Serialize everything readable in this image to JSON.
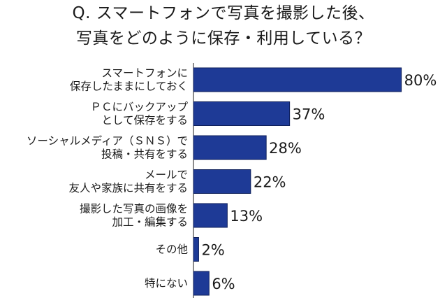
{
  "title_lines": [
    "Q. スマートフォンで写真を撮影した後、",
    "写真をどのように保存・利用している？"
  ],
  "chart_data": {
    "type": "bar",
    "orientation": "horizontal",
    "categories": [
      [
        "スマートフォンに",
        "保存したままにしておく"
      ],
      [
        "ＰＣにバックアップ",
        "として保存をする"
      ],
      [
        "ソーシャルメディア（ＳＮＳ）で",
        "投稿・共有をする"
      ],
      [
        "メールで",
        "友人や家族に共有をする"
      ],
      [
        "撮影した写真の画像を",
        "加工・編集する"
      ],
      [
        "その他"
      ],
      [
        "特にない"
      ]
    ],
    "values": [
      80,
      37,
      28,
      22,
      13,
      2,
      6
    ],
    "value_labels": [
      "80%",
      "37%",
      "28%",
      "22%",
      "13%",
      "2%",
      "6%"
    ],
    "unit": "%",
    "xlim": [
      0,
      100
    ],
    "bar_color": "#1e3a96",
    "bar_border_color": "#0e1f5a"
  }
}
